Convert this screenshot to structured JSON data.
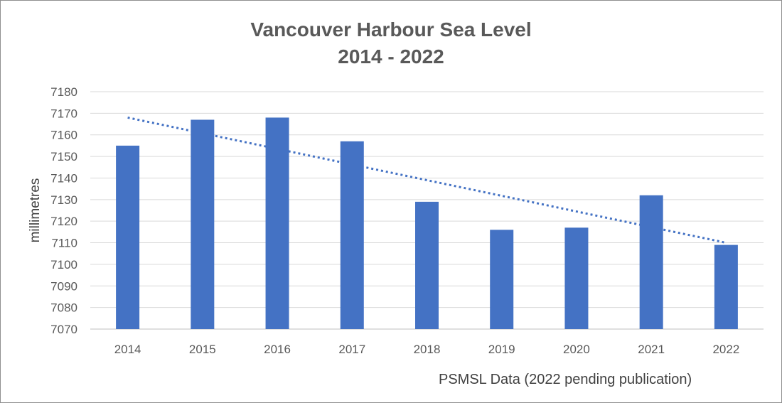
{
  "chart_data": {
    "type": "bar",
    "title": "Vancouver Harbour Sea Level",
    "subtitle": "2014 - 2022",
    "categories": [
      "2014",
      "2015",
      "2016",
      "2017",
      "2018",
      "2019",
      "2020",
      "2021",
      "2022"
    ],
    "values": [
      7155,
      7167,
      7168,
      7157,
      7129,
      7116,
      7117,
      7132,
      7109
    ],
    "xlabel": "",
    "ylabel": "millimetres",
    "ylim": [
      7070,
      7180
    ],
    "yticks": [
      7070,
      7080,
      7090,
      7100,
      7110,
      7120,
      7130,
      7140,
      7150,
      7160,
      7170,
      7180
    ],
    "trendline": {
      "style": "dotted",
      "start": 7168,
      "end": 7110
    },
    "grid": true,
    "bar_color": "#4472C4",
    "note": "PSMSL Data (2022 pending publication)"
  }
}
